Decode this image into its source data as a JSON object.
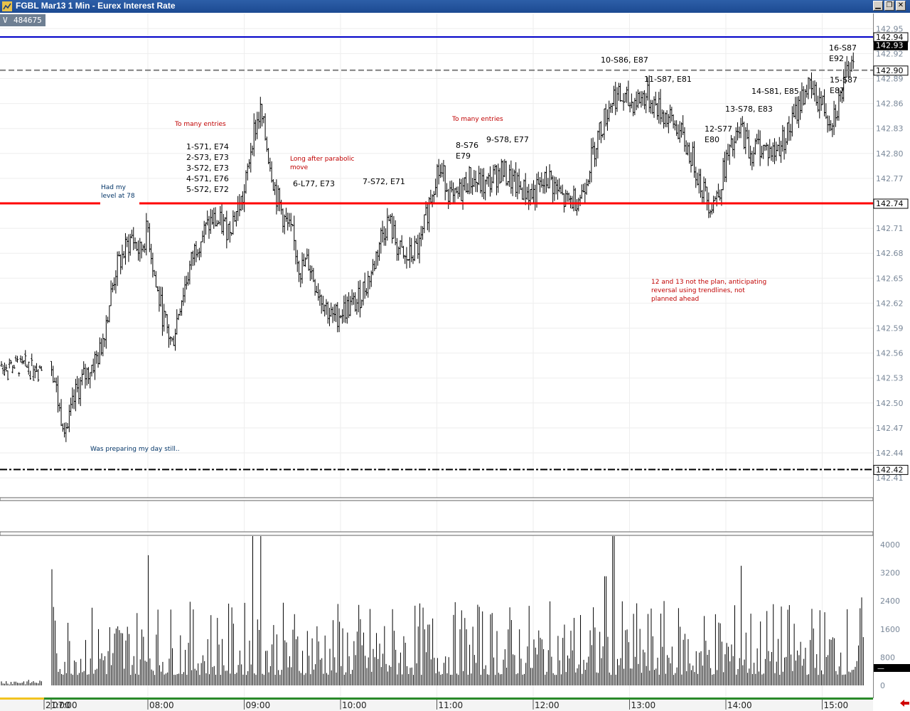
{
  "window": {
    "title": "FGBL Mar13 1 Min - Eurex Interest Rate",
    "buttons": [
      "minimize",
      "restore",
      "close"
    ]
  },
  "volume_label": {
    "letter": "V",
    "value": "484675"
  },
  "price_lines": [
    {
      "value": "142.94",
      "style": "solid",
      "color": "#0000c8"
    },
    {
      "value": "142.90",
      "style": "dashed",
      "color": "#808080"
    },
    {
      "value": "142.74",
      "style": "solid",
      "color": "#ff0000"
    },
    {
      "value": "142.42",
      "style": "dash-dot",
      "color": "#000000"
    }
  ],
  "last_price": "142.93",
  "annotations": [
    {
      "text": "To many entries",
      "color": "#c00000"
    },
    {
      "text": "1-S71, E74",
      "color": "#000000"
    },
    {
      "text": "2-S73, E73",
      "color": "#000000"
    },
    {
      "text": "3-S72, E73",
      "color": "#000000"
    },
    {
      "text": "4-S71, E76",
      "color": "#000000"
    },
    {
      "text": "5-S72, E72",
      "color": "#000000"
    },
    {
      "text": "Had my",
      "color": "#003366"
    },
    {
      "text": "level at 78",
      "color": "#003366"
    },
    {
      "text": "Long after parabolic",
      "color": "#c00000"
    },
    {
      "text": "move",
      "color": "#c00000"
    },
    {
      "text": "6-L77, E73",
      "color": "#000000"
    },
    {
      "text": "7-S72, E71",
      "color": "#000000"
    },
    {
      "text": "To many entries",
      "color": "#c00000"
    },
    {
      "text": "8-S76",
      "color": "#000000"
    },
    {
      "text": "E79",
      "color": "#000000"
    },
    {
      "text": "9-S78, E77",
      "color": "#000000"
    },
    {
      "text": "10-S86, E87",
      "color": "#000000"
    },
    {
      "text": "11-S87, E81",
      "color": "#000000"
    },
    {
      "text": "12-S77",
      "color": "#000000"
    },
    {
      "text": "E80",
      "color": "#000000"
    },
    {
      "text": "13-S78, E83",
      "color": "#000000"
    },
    {
      "text": "14-S81, E85",
      "color": "#000000"
    },
    {
      "text": "15-S87",
      "color": "#000000"
    },
    {
      "text": "E87",
      "color": "#000000"
    },
    {
      "text": "16-S87",
      "color": "#000000"
    },
    {
      "text": "E92",
      "color": "#000000"
    },
    {
      "text": "12 and 13 not the plan, anticipating",
      "color": "#c00000"
    },
    {
      "text": "reversal using trendlines, not",
      "color": "#c00000"
    },
    {
      "text": "planned ahead",
      "color": "#c00000"
    },
    {
      "text": "Was preparing my day still..",
      "color": "#003366"
    }
  ],
  "chart_data": [
    {
      "type": "bar",
      "subtype": "ohlc-1min",
      "ylim": [
        142.39,
        142.97
      ],
      "y_ticks": [
        "142.95",
        "142.92",
        "142.89",
        "142.86",
        "142.83",
        "142.80",
        "142.77",
        "142.71",
        "142.68",
        "142.65",
        "142.62",
        "142.59",
        "142.56",
        "142.53",
        "142.50",
        "142.47",
        "142.44",
        "142.41"
      ],
      "x_ticks": [
        "21:00",
        "07:00",
        "08:00",
        "09:00",
        "10:00",
        "11:00",
        "12:00",
        "13:00",
        "14:00",
        "15:00"
      ],
      "grid": true,
      "close_path": [
        [
          "07:00",
          142.55
        ],
        [
          "07:05",
          142.49
        ],
        [
          "07:10",
          142.47
        ],
        [
          "07:15",
          142.51
        ],
        [
          "07:20",
          142.53
        ],
        [
          "07:30",
          142.56
        ],
        [
          "07:40",
          142.66
        ],
        [
          "07:50",
          142.7
        ],
        [
          "07:55",
          142.68
        ],
        [
          "08:00",
          142.71
        ],
        [
          "08:05",
          142.64
        ],
        [
          "08:10",
          142.6
        ],
        [
          "08:15",
          142.57
        ],
        [
          "08:20",
          142.62
        ],
        [
          "08:30",
          142.69
        ],
        [
          "08:40",
          142.72
        ],
        [
          "08:50",
          142.71
        ],
        [
          "09:00",
          142.75
        ],
        [
          "09:05",
          142.82
        ],
        [
          "09:10",
          142.85
        ],
        [
          "09:15",
          142.8
        ],
        [
          "09:20",
          142.75
        ],
        [
          "09:25",
          142.72
        ],
        [
          "09:30",
          142.7
        ],
        [
          "09:35",
          142.66
        ],
        [
          "09:40",
          142.67
        ],
        [
          "09:45",
          142.64
        ],
        [
          "09:50",
          142.62
        ],
        [
          "09:55",
          142.6
        ],
        [
          "10:00",
          142.61
        ],
        [
          "10:10",
          142.62
        ],
        [
          "10:20",
          142.66
        ],
        [
          "10:25",
          142.7
        ],
        [
          "10:30",
          142.72
        ],
        [
          "10:35",
          142.69
        ],
        [
          "10:40",
          142.67
        ],
        [
          "10:50",
          142.69
        ],
        [
          "10:55",
          142.74
        ],
        [
          "11:00",
          142.78
        ],
        [
          "11:05",
          142.77
        ],
        [
          "11:10",
          142.74
        ],
        [
          "11:20",
          142.77
        ],
        [
          "11:30",
          142.76
        ],
        [
          "11:40",
          142.78
        ],
        [
          "11:50",
          142.76
        ],
        [
          "12:00",
          142.75
        ],
        [
          "12:10",
          142.77
        ],
        [
          "12:20",
          142.74
        ],
        [
          "12:30",
          142.75
        ],
        [
          "12:40",
          142.82
        ],
        [
          "12:50",
          142.87
        ],
        [
          "13:00",
          142.86
        ],
        [
          "13:10",
          142.87
        ],
        [
          "13:20",
          142.85
        ],
        [
          "13:30",
          142.83
        ],
        [
          "13:40",
          142.79
        ],
        [
          "13:45",
          142.76
        ],
        [
          "13:50",
          142.74
        ],
        [
          "13:55",
          142.75
        ],
        [
          "14:00",
          142.79
        ],
        [
          "14:10",
          142.83
        ],
        [
          "14:15",
          142.8
        ],
        [
          "14:20",
          142.81
        ],
        [
          "14:30",
          142.8
        ],
        [
          "14:40",
          142.83
        ],
        [
          "14:50",
          142.88
        ],
        [
          "14:55",
          142.87
        ],
        [
          "15:00",
          142.86
        ],
        [
          "15:05",
          142.84
        ],
        [
          "15:10",
          142.86
        ],
        [
          "15:15",
          142.89
        ],
        [
          "15:20",
          142.93
        ]
      ]
    },
    {
      "type": "bar",
      "subtype": "volume",
      "ylim": [
        0,
        4400
      ],
      "y_ticks": [
        "4000",
        "3200",
        "2400",
        "1600",
        "800",
        "0"
      ],
      "notable_values": [
        {
          "x": "07:00",
          "value": 3300
        },
        {
          "x": "08:00",
          "value": 3700
        },
        {
          "x": "09:05",
          "value": 4400
        },
        {
          "x": "09:10",
          "value": 4400
        },
        {
          "x": "12:50",
          "value": 4300
        },
        {
          "x": "12:45",
          "value": 3100
        },
        {
          "x": "14:10",
          "value": 3400
        },
        {
          "x": "15:25",
          "value": 2500
        }
      ],
      "last_value": "—",
      "typical_range": [
        300,
        1800
      ]
    }
  ]
}
